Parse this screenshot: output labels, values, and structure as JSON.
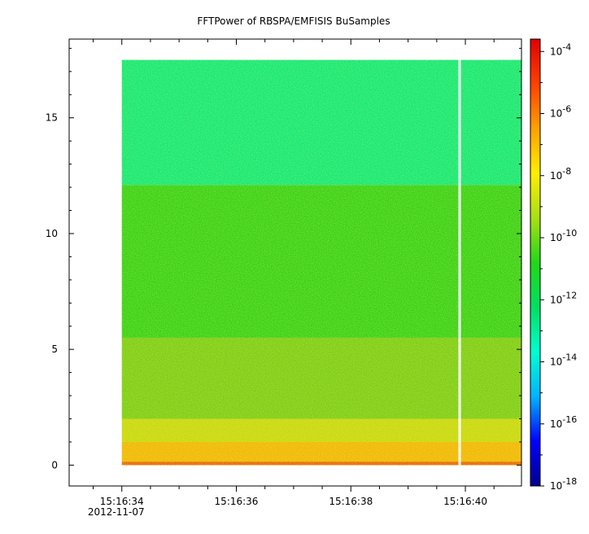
{
  "chart_data": {
    "type": "heatmap",
    "title": "FFTPower of RBSPA/EMFISIS  BuSamples",
    "xlabel": "",
    "ylabel": "",
    "x_ticks": [
      {
        "label": "15:16:34",
        "sublabel": "2012-11-07",
        "t": 34
      },
      {
        "label": "15:16:36",
        "sublabel": "",
        "t": 36
      },
      {
        "label": "15:16:38",
        "sublabel": "",
        "t": 38
      },
      {
        "label": "15:16:40",
        "sublabel": "",
        "t": 40
      }
    ],
    "xlim": [
      33.08,
      40.98
    ],
    "x_minor_step": 0.5,
    "ylim": [
      -0.9,
      18.4
    ],
    "y_ticks": [
      0,
      5,
      10,
      15
    ],
    "data_extent": {
      "x": [
        34.0,
        40.98
      ],
      "y": [
        0,
        17.5
      ]
    },
    "gap": {
      "t": 39.9
    },
    "bands": [
      {
        "y": [
          12.1,
          17.5
        ],
        "log_power": -12.5,
        "color": "#15e87e"
      },
      {
        "y": [
          5.5,
          12.1
        ],
        "log_power": -10.2,
        "color": "#3ad11f"
      },
      {
        "y": [
          2.0,
          5.5
        ],
        "log_power": -9.6,
        "color": "#7ecd1e"
      },
      {
        "y": [
          1.0,
          2.0
        ],
        "log_power": -8.7,
        "color": "#c8d817"
      },
      {
        "y": [
          0.15,
          1.0
        ],
        "log_power": -7.5,
        "color": "#f0b80d"
      },
      {
        "y": [
          0,
          0.15
        ],
        "log_power": -6.3,
        "color": "#e86a0a"
      }
    ],
    "colorbar": {
      "scale": "log",
      "min_exp": -18,
      "max_exp": -3.6,
      "ticks": [
        {
          "base": "10",
          "exp": "-4"
        },
        {
          "base": "10",
          "exp": "-6"
        },
        {
          "base": "10",
          "exp": "-8"
        },
        {
          "base": "10",
          "exp": "-10"
        },
        {
          "base": "10",
          "exp": "-12"
        },
        {
          "base": "10",
          "exp": "-14"
        },
        {
          "base": "10",
          "exp": "-16"
        },
        {
          "base": "10",
          "exp": "-18"
        }
      ],
      "colors": [
        "#00008f",
        "#0000ff",
        "#00b4ff",
        "#00ffd0",
        "#00e060",
        "#22d818",
        "#a8e014",
        "#ffee00",
        "#ffa000",
        "#ff4000",
        "#e00000"
      ]
    },
    "grid": false
  }
}
